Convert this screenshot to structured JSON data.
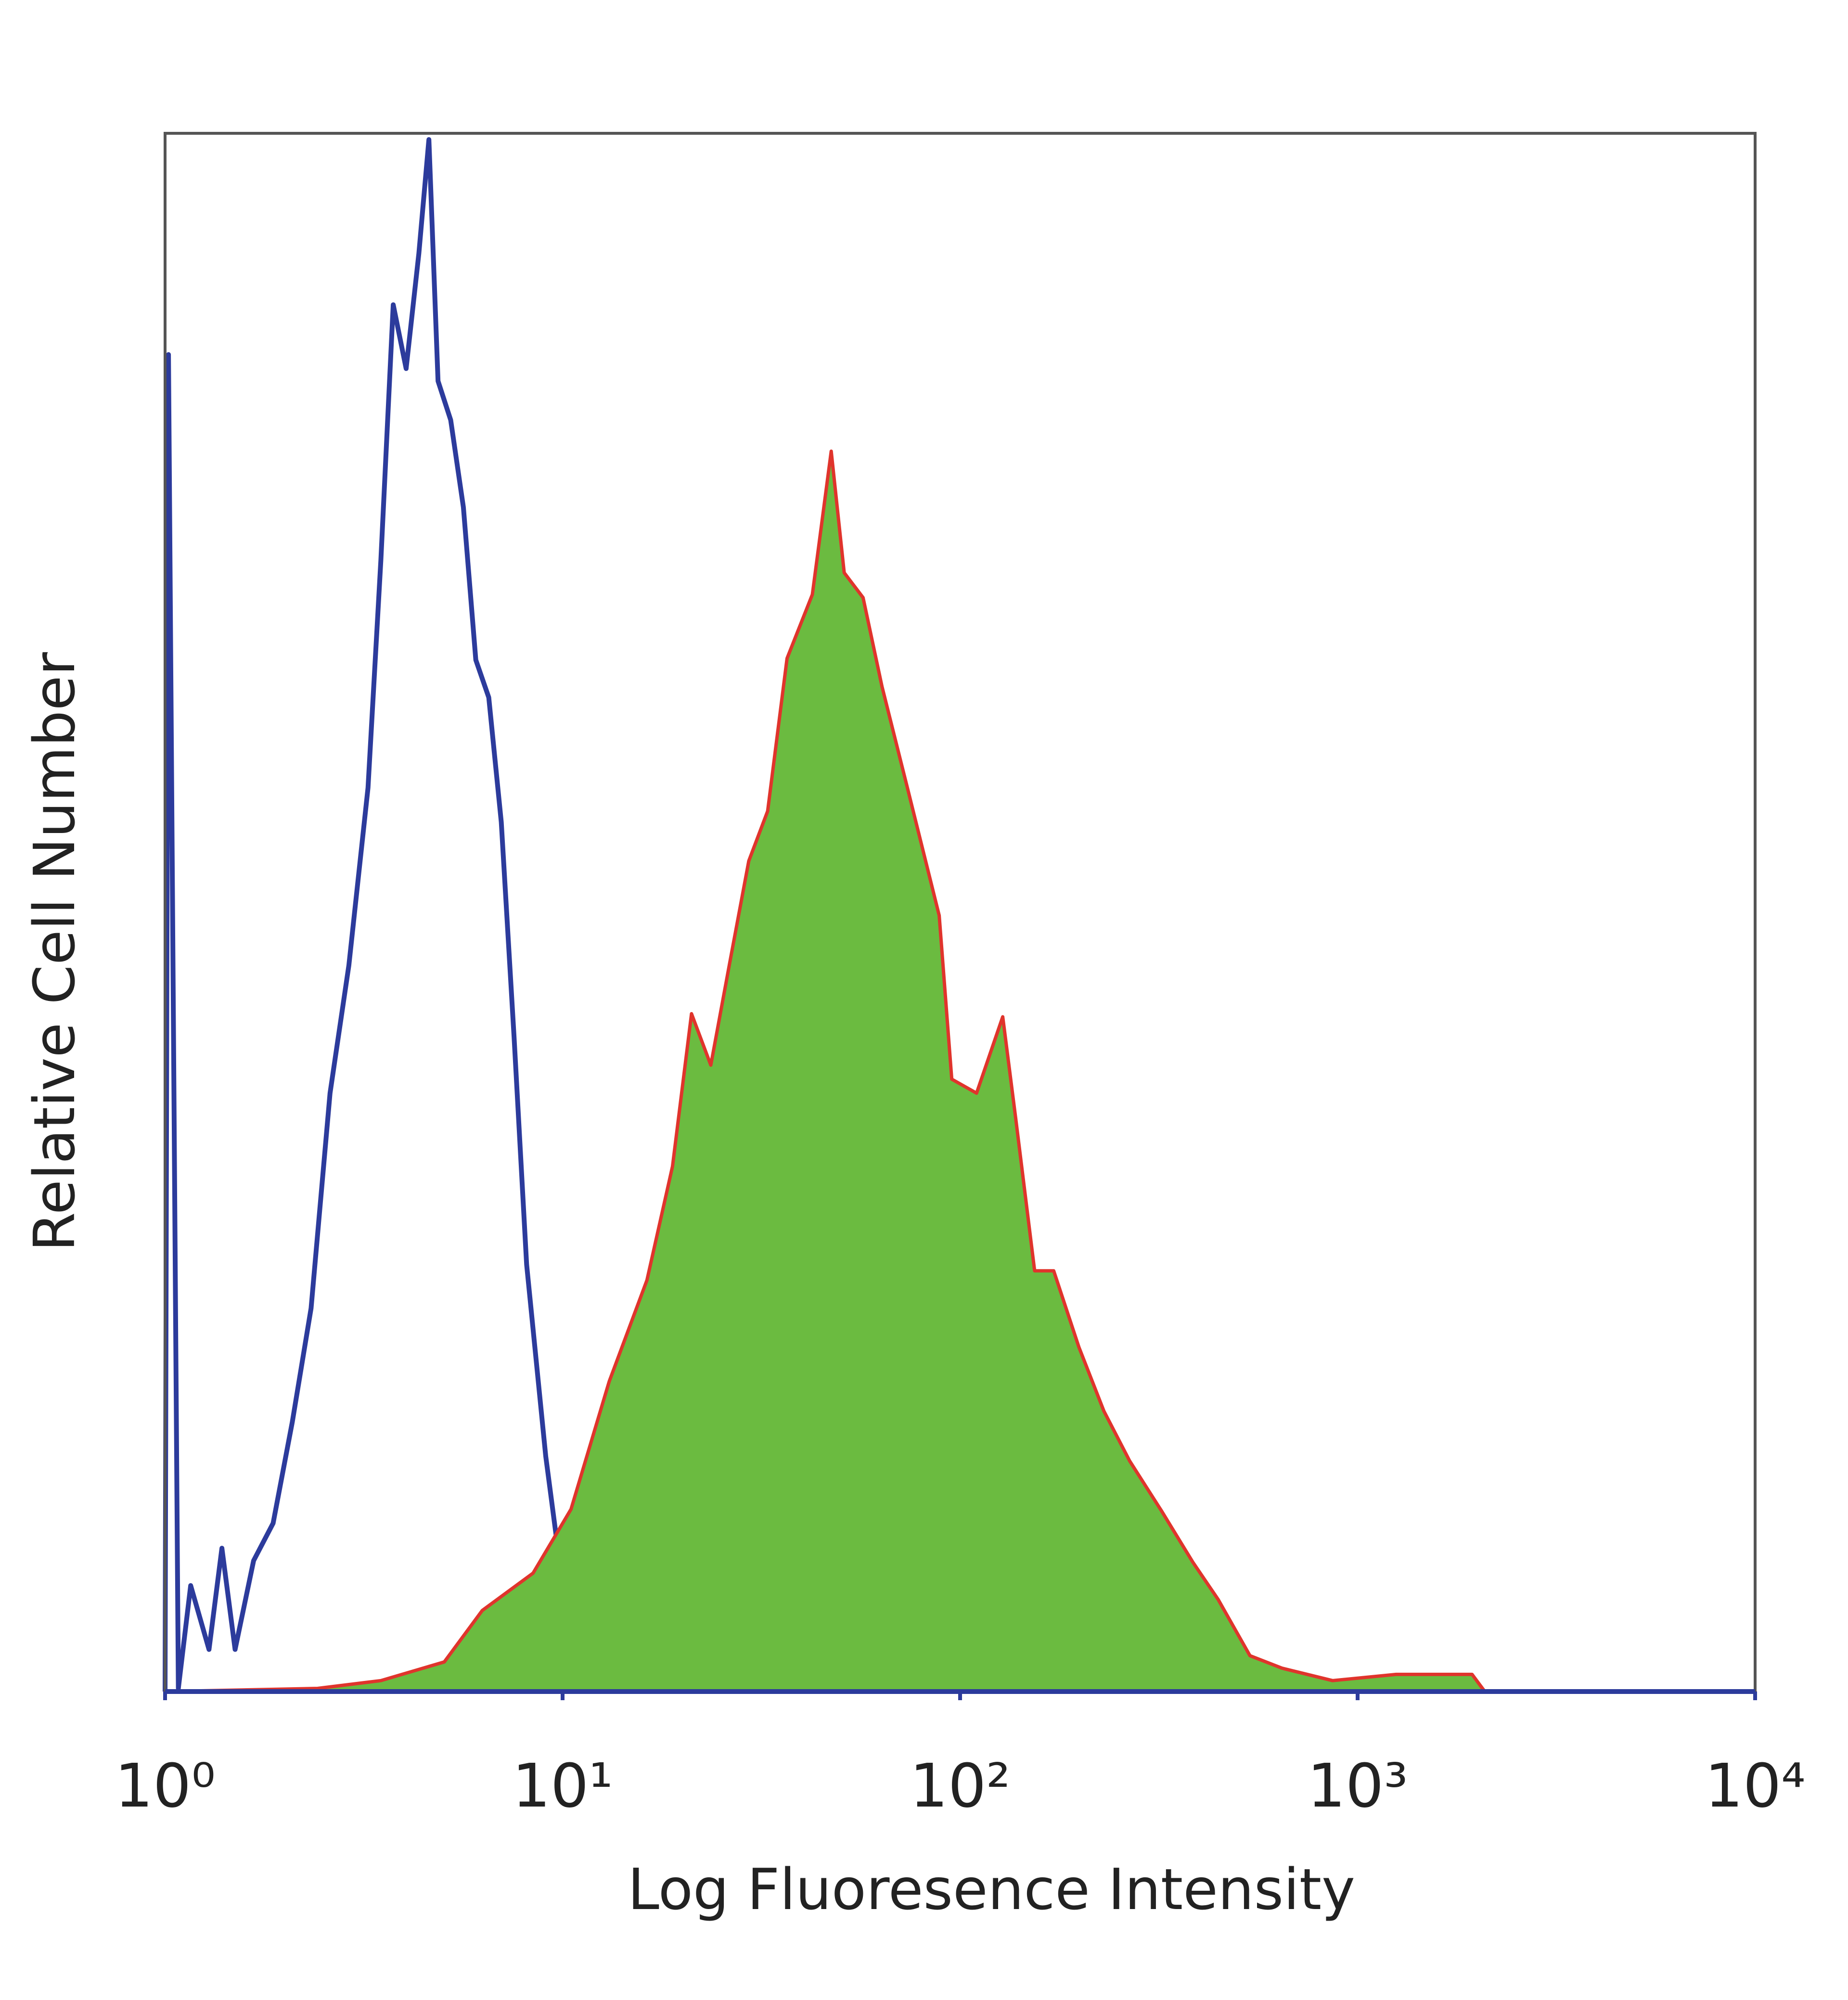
{
  "chart_data": {
    "type": "histogram-overlay",
    "xlabel": "Log Fluoresence Intensity",
    "ylabel": "Relative Cell Number",
    "xscale": "log",
    "xlim": [
      1,
      10000
    ],
    "xticks": [
      {
        "value": 1,
        "label": "10⁰"
      },
      {
        "value": 10,
        "label": "10¹"
      },
      {
        "value": 100,
        "label": "10²"
      },
      {
        "value": 1000,
        "label": "10³"
      },
      {
        "value": 10000,
        "label": "10⁴"
      }
    ],
    "ylim": [
      0,
      100
    ],
    "series": [
      {
        "style": "outline",
        "color": "#2c3b9c",
        "x": [
          1,
          1.02,
          1.08,
          1.16,
          1.29,
          1.39,
          1.5,
          1.67,
          1.87,
          2.09,
          2.33,
          2.6,
          2.9,
          3.24,
          3.49,
          3.75,
          4.04,
          4.35,
          4.61,
          4.86,
          5.23,
          5.63,
          6.05,
          6.52,
          7.01,
          7.55,
          8.12,
          9.07,
          10.1,
          11.3,
          13.1,
          15.2,
          20.4,
          31.6,
          66,
          138,
          10000
        ],
        "values": [
          0,
          85.8,
          0.2,
          6.8,
          2.7,
          9.2,
          2.7,
          8.4,
          10.8,
          17.3,
          24.6,
          38.4,
          46.6,
          58,
          72.6,
          89,
          84.9,
          92.3,
          99.6,
          84.1,
          81.6,
          76,
          66.2,
          63.8,
          55.8,
          42,
          27.4,
          15.1,
          6,
          2.3,
          1.5,
          0.7,
          0.2,
          0,
          1.1,
          0,
          0
        ]
      },
      {
        "style": "filled",
        "color": "#6bbb40",
        "edge_color": "#e0342c",
        "x": [
          1,
          2.42,
          3.49,
          5.04,
          6.28,
          8.43,
          10.5,
          13.1,
          16.3,
          18.9,
          21.1,
          23.6,
          26.3,
          29.4,
          32.8,
          36.7,
          42.5,
          47.4,
          51.1,
          57,
          63.6,
          73.7,
          88.6,
          95.3,
          110,
          128,
          138,
          154,
          172,
          199,
          230,
          267,
          321,
          385,
          446,
          536,
          645,
          865,
          1250,
          1941,
          2089,
          10000
        ],
        "values": [
          0,
          0.2,
          0.7,
          1.9,
          5.2,
          7.6,
          11.7,
          19.9,
          26.4,
          33.7,
          43.5,
          40.2,
          46.7,
          53.3,
          56.5,
          66.3,
          70.4,
          79.6,
          71.8,
          70.2,
          64.5,
          58,
          49.8,
          39.3,
          38.4,
          43.3,
          36.8,
          27,
          27,
          22.1,
          18,
          14.8,
          11.6,
          8.3,
          5.9,
          2.3,
          1.5,
          0.7,
          1.1,
          1.1,
          0,
          0
        ]
      }
    ]
  }
}
